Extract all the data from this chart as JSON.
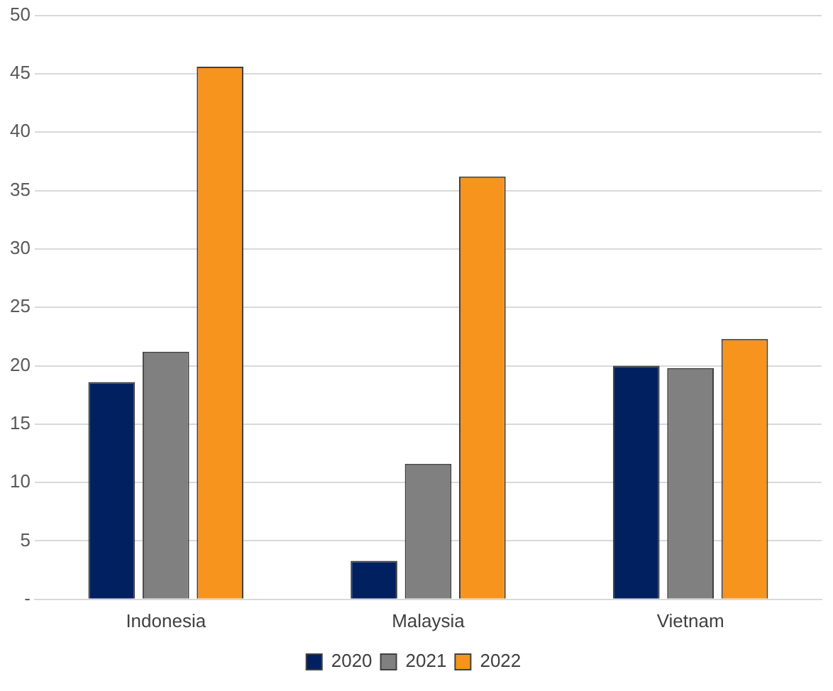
{
  "chart_data": {
    "type": "bar",
    "categories": [
      "Indonesia",
      "Malaysia",
      "Vietnam"
    ],
    "series": [
      {
        "name": "2020",
        "color": "#002060",
        "values": [
          18.6,
          3.3,
          20.0
        ]
      },
      {
        "name": "2021",
        "color": "#808080",
        "values": [
          21.2,
          11.6,
          19.8
        ]
      },
      {
        "name": "2022",
        "color": "#f7941d",
        "values": [
          45.6,
          36.2,
          22.3
        ]
      }
    ],
    "ylim": [
      0,
      50
    ],
    "yticks": [
      {
        "value": 0,
        "label": "-"
      },
      5,
      10,
      15,
      20,
      25,
      30,
      35,
      40,
      45,
      50
    ],
    "grid": "y",
    "legend": "bottom"
  }
}
